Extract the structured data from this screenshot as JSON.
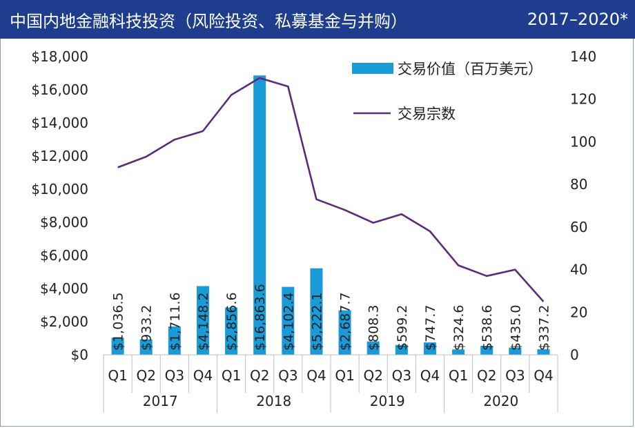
{
  "header": {
    "title": "中国内地金融科技投资（风险投资、私募基金与并购）",
    "years_label": "2017–2020*",
    "background_color": "#1f3d8f"
  },
  "chart_data": {
    "type": "bar+line",
    "categories": [
      "Q1",
      "Q2",
      "Q3",
      "Q4",
      "Q1",
      "Q2",
      "Q3",
      "Q4",
      "Q1",
      "Q2",
      "Q3",
      "Q4",
      "Q1",
      "Q2",
      "Q3",
      "Q4"
    ],
    "year_groups": [
      {
        "year": "2017",
        "count": 4
      },
      {
        "year": "2018",
        "count": 4
      },
      {
        "year": "2019",
        "count": 4
      },
      {
        "year": "2020",
        "count": 4
      }
    ],
    "series": [
      {
        "name": "交易价值（百万美元）",
        "type": "bar",
        "axis": "left",
        "color": "#1a9ad6",
        "values": [
          1036.5,
          933.2,
          1711.6,
          4148.2,
          2856.6,
          16863.6,
          4102.4,
          5222.1,
          2687.7,
          808.3,
          599.2,
          747.7,
          324.6,
          538.6,
          435.0,
          337.2
        ],
        "labels": [
          "$1,036.5",
          "$933.2",
          "$1,711.6",
          "$4,148.2",
          "$2,856.6",
          "$16,863.6",
          "$4,102.4",
          "$5,222.1",
          "$2,687.7",
          "$808.3",
          "$599.2",
          "$747.7",
          "$324.6",
          "$538.6",
          "$435.0",
          "$337.2"
        ]
      },
      {
        "name": "交易宗数",
        "type": "line",
        "axis": "right",
        "color": "#5b2a78",
        "values": [
          88,
          93,
          101,
          105,
          122,
          130,
          126,
          73,
          68,
          62,
          66,
          58,
          42,
          37,
          40,
          25
        ]
      }
    ],
    "left_axis": {
      "ylim": [
        0,
        18000
      ],
      "ticks": [
        0,
        2000,
        4000,
        6000,
        8000,
        10000,
        12000,
        14000,
        16000,
        18000
      ],
      "tick_labels": [
        "$0",
        "$2,000",
        "$4,000",
        "$6,000",
        "$8,000",
        "$10,000",
        "$12,000",
        "$14,000",
        "$16,000",
        "$18,000"
      ]
    },
    "right_axis": {
      "ylim": [
        0,
        140
      ],
      "ticks": [
        0,
        20,
        40,
        60,
        80,
        100,
        120,
        140
      ],
      "tick_labels": [
        "0",
        "20",
        "40",
        "60",
        "80",
        "100",
        "120",
        "140"
      ]
    },
    "legend_position": "top-right",
    "grid": false
  }
}
